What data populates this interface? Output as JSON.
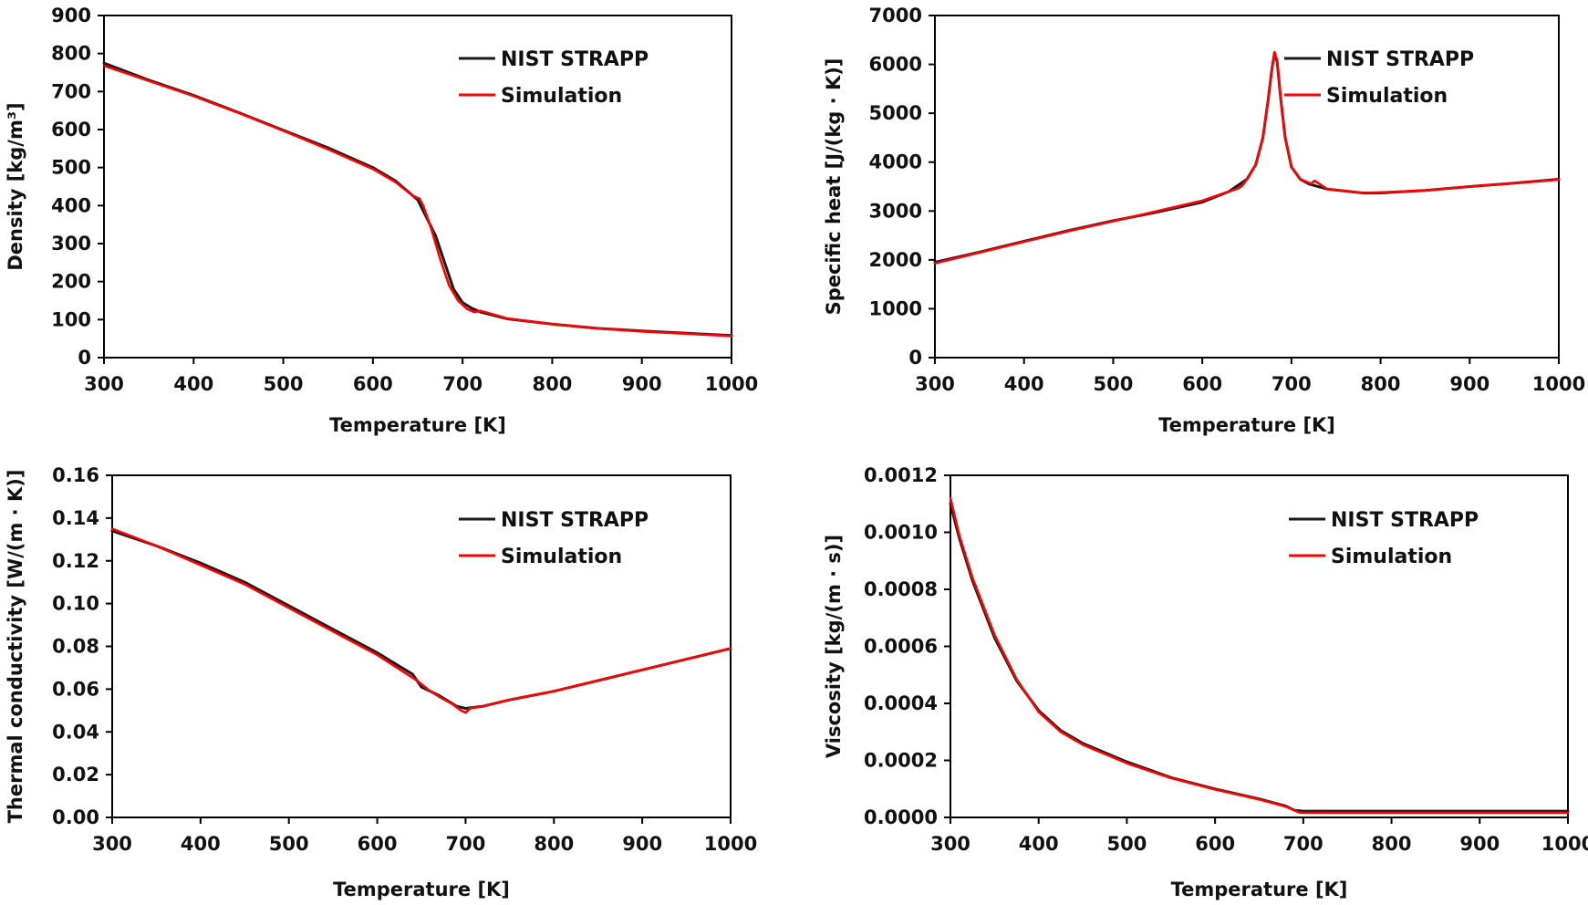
{
  "chart_data": [
    {
      "type": "line",
      "xlabel": "Temperature [K]",
      "ylabel": "Density [kg/m³]",
      "xlim": [
        300,
        1000
      ],
      "ylim": [
        0,
        900
      ],
      "xticks": [
        "300",
        "400",
        "500",
        "600",
        "700",
        "800",
        "900",
        "1000"
      ],
      "yticks": [
        "0",
        "100",
        "200",
        "300",
        "400",
        "500",
        "600",
        "700",
        "800",
        "900"
      ],
      "grid": false,
      "legend_position": "top-right",
      "colors": {
        "NIST STRAPP": "#1a1a1a",
        "Simulation": "#ff0000"
      },
      "series": [
        {
          "name": "NIST STRAPP",
          "points": [
            [
              300,
              775
            ],
            [
              350,
              730
            ],
            [
              400,
              690
            ],
            [
              450,
              645
            ],
            [
              500,
              598
            ],
            [
              550,
              552
            ],
            [
              600,
              500
            ],
            [
              625,
              465
            ],
            [
              650,
              415
            ],
            [
              670,
              320
            ],
            [
              680,
              250
            ],
            [
              690,
              180
            ],
            [
              700,
              145
            ],
            [
              710,
              130
            ],
            [
              720,
              120
            ],
            [
              750,
              102
            ],
            [
              800,
              88
            ],
            [
              850,
              77
            ],
            [
              900,
              70
            ],
            [
              950,
              64
            ],
            [
              1000,
              58
            ]
          ]
        },
        {
          "name": "Simulation",
          "points": [
            [
              300,
              768
            ],
            [
              350,
              728
            ],
            [
              400,
              688
            ],
            [
              450,
              644
            ],
            [
              500,
              597
            ],
            [
              550,
              548
            ],
            [
              600,
              496
            ],
            [
              625,
              462
            ],
            [
              645,
              425
            ],
            [
              652,
              418
            ],
            [
              656,
              400
            ],
            [
              665,
              340
            ],
            [
              675,
              260
            ],
            [
              685,
              190
            ],
            [
              695,
              150
            ],
            [
              705,
              128
            ],
            [
              713,
              120
            ],
            [
              720,
              123
            ],
            [
              750,
              103
            ],
            [
              800,
              88
            ],
            [
              850,
              77
            ],
            [
              900,
              69
            ],
            [
              950,
              63
            ],
            [
              1000,
              57
            ]
          ]
        }
      ]
    },
    {
      "type": "line",
      "xlabel": "Temperature [K]",
      "ylabel": "Specific heat [J/(kg · K)]",
      "xlim": [
        300,
        1000
      ],
      "ylim": [
        0,
        7000
      ],
      "xticks": [
        "300",
        "400",
        "500",
        "600",
        "700",
        "800",
        "900",
        "1000"
      ],
      "yticks": [
        "0",
        "1000",
        "2000",
        "3000",
        "4000",
        "5000",
        "6000",
        "7000"
      ],
      "grid": false,
      "legend_position": "top-right",
      "colors": {
        "NIST STRAPP": "#1a1a1a",
        "Simulation": "#ff0000"
      },
      "series": [
        {
          "name": "NIST STRAPP",
          "points": [
            [
              300,
              1950
            ],
            [
              350,
              2160
            ],
            [
              400,
              2380
            ],
            [
              450,
              2600
            ],
            [
              500,
              2800
            ],
            [
              550,
              2980
            ],
            [
              600,
              3180
            ],
            [
              630,
              3400
            ],
            [
              650,
              3650
            ],
            [
              660,
              3950
            ],
            [
              668,
              4500
            ],
            [
              674,
              5300
            ],
            [
              678,
              5900
            ],
            [
              681,
              6230
            ],
            [
              684,
              6050
            ],
            [
              688,
              5300
            ],
            [
              693,
              4500
            ],
            [
              700,
              3900
            ],
            [
              710,
              3650
            ],
            [
              720,
              3550
            ],
            [
              740,
              3450
            ],
            [
              780,
              3370
            ],
            [
              800,
              3370
            ],
            [
              850,
              3420
            ],
            [
              900,
              3500
            ],
            [
              950,
              3570
            ],
            [
              1000,
              3650
            ]
          ]
        },
        {
          "name": "Simulation",
          "points": [
            [
              300,
              1930
            ],
            [
              350,
              2150
            ],
            [
              400,
              2370
            ],
            [
              450,
              2590
            ],
            [
              500,
              2790
            ],
            [
              550,
              3000
            ],
            [
              600,
              3210
            ],
            [
              625,
              3370
            ],
            [
              640,
              3460
            ],
            [
              645,
              3520
            ],
            [
              652,
              3700
            ],
            [
              660,
              3950
            ],
            [
              668,
              4500
            ],
            [
              674,
              5300
            ],
            [
              678,
              5900
            ],
            [
              681,
              6250
            ],
            [
              684,
              6080
            ],
            [
              688,
              5300
            ],
            [
              693,
              4500
            ],
            [
              700,
              3900
            ],
            [
              710,
              3650
            ],
            [
              722,
              3560
            ],
            [
              726,
              3620
            ],
            [
              740,
              3450
            ],
            [
              780,
              3370
            ],
            [
              800,
              3380
            ],
            [
              850,
              3420
            ],
            [
              900,
              3500
            ],
            [
              950,
              3570
            ],
            [
              1000,
              3640
            ]
          ]
        }
      ]
    },
    {
      "type": "line",
      "xlabel": "Temperature [K]",
      "ylabel": "Thermal conductivity [W/(m · K)]",
      "xlim": [
        300,
        1000
      ],
      "ylim": [
        0,
        0.16
      ],
      "xticks": [
        "300",
        "400",
        "500",
        "600",
        "700",
        "800",
        "900",
        "1000"
      ],
      "yticks": [
        "0.00",
        "0.02",
        "0.04",
        "0.06",
        "0.08",
        "0.10",
        "0.12",
        "0.14",
        "0.16"
      ],
      "grid": false,
      "legend_position": "top-right",
      "colors": {
        "NIST STRAPP": "#1a1a1a",
        "Simulation": "#ff0000"
      },
      "series": [
        {
          "name": "NIST STRAPP",
          "points": [
            [
              300,
              0.134
            ],
            [
              350,
              0.127
            ],
            [
              400,
              0.119
            ],
            [
              450,
              0.11
            ],
            [
              500,
              0.099
            ],
            [
              550,
              0.088
            ],
            [
              600,
              0.077
            ],
            [
              640,
              0.067
            ],
            [
              650,
              0.061
            ],
            [
              670,
              0.057
            ],
            [
              690,
              0.052
            ],
            [
              700,
              0.051
            ],
            [
              720,
              0.052
            ],
            [
              750,
              0.055
            ],
            [
              800,
              0.059
            ],
            [
              850,
              0.064
            ],
            [
              900,
              0.069
            ],
            [
              950,
              0.074
            ],
            [
              1000,
              0.079
            ]
          ]
        },
        {
          "name": "Simulation",
          "points": [
            [
              300,
              0.135
            ],
            [
              350,
              0.127
            ],
            [
              400,
              0.118
            ],
            [
              450,
              0.109
            ],
            [
              500,
              0.098
            ],
            [
              550,
              0.087
            ],
            [
              600,
              0.076
            ],
            [
              645,
              0.064
            ],
            [
              660,
              0.059
            ],
            [
              672,
              0.056
            ],
            [
              685,
              0.053
            ],
            [
              695,
              0.05
            ],
            [
              700,
              0.049
            ],
            [
              705,
              0.051
            ],
            [
              720,
              0.052
            ],
            [
              750,
              0.055
            ],
            [
              800,
              0.059
            ],
            [
              850,
              0.064
            ],
            [
              900,
              0.069
            ],
            [
              950,
              0.074
            ],
            [
              1000,
              0.079
            ]
          ]
        }
      ]
    },
    {
      "type": "line",
      "xlabel": "Temperature [K]",
      "ylabel": "Viscosity [kg/(m · s)]",
      "xlim": [
        300,
        1000
      ],
      "ylim": [
        0,
        0.0012
      ],
      "xticks": [
        "300",
        "400",
        "500",
        "600",
        "700",
        "800",
        "900",
        "1000"
      ],
      "yticks": [
        "0.0000",
        "0.0002",
        "0.0004",
        "0.0006",
        "0.0008",
        "0.0010",
        "0.0012"
      ],
      "grid": false,
      "legend_position": "top-right",
      "colors": {
        "NIST STRAPP": "#1a1a1a",
        "Simulation": "#ff0000"
      },
      "series": [
        {
          "name": "NIST STRAPP",
          "points": [
            [
              300,
              0.0011
            ],
            [
              310,
              0.00098
            ],
            [
              325,
              0.00083
            ],
            [
              350,
              0.00063
            ],
            [
              375,
              0.00048
            ],
            [
              400,
              0.000375
            ],
            [
              425,
              0.000305
            ],
            [
              450,
              0.00026
            ],
            [
              500,
              0.000195
            ],
            [
              550,
              0.00014
            ],
            [
              600,
              0.0001
            ],
            [
              650,
              6.5e-05
            ],
            [
              680,
              4e-05
            ],
            [
              690,
              2.5e-05
            ],
            [
              700,
              2.2e-05
            ],
            [
              750,
              2.2e-05
            ],
            [
              800,
              2.2e-05
            ],
            [
              900,
              2.2e-05
            ],
            [
              1000,
              2.2e-05
            ]
          ]
        },
        {
          "name": "Simulation",
          "points": [
            [
              300,
              0.00112
            ],
            [
              310,
              0.00099
            ],
            [
              325,
              0.00084
            ],
            [
              350,
              0.00064
            ],
            [
              375,
              0.000485
            ],
            [
              400,
              0.00037
            ],
            [
              425,
              0.0003
            ],
            [
              450,
              0.000255
            ],
            [
              500,
              0.00019
            ],
            [
              550,
              0.000138
            ],
            [
              600,
              9.8e-05
            ],
            [
              650,
              6.3e-05
            ],
            [
              680,
              3.8e-05
            ],
            [
              695,
              1.8e-05
            ],
            [
              700,
              1.6e-05
            ],
            [
              750,
              1.6e-05
            ],
            [
              800,
              1.6e-05
            ],
            [
              900,
              1.6e-05
            ],
            [
              1000,
              1.6e-05
            ]
          ]
        }
      ]
    }
  ]
}
